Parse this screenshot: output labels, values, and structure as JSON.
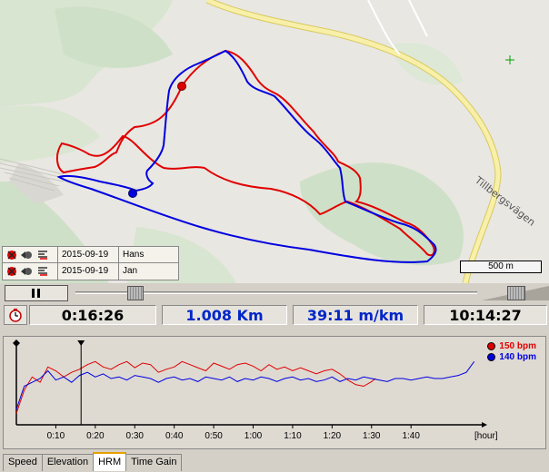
{
  "map": {
    "road_label": "Tillbergsvägen",
    "scale_label": "500 m",
    "colors": {
      "land": "#e9e7e2",
      "forest": "#cfe0c8",
      "road": "#f8f0a8",
      "road_edge": "#d8c860",
      "track_red": "#e00000",
      "track_blue": "#0000e0"
    }
  },
  "tracks": [
    {
      "date": "2015-09-19",
      "name": "Hans",
      "color": "#e00000"
    },
    {
      "date": "2015-09-19",
      "name": "Jan",
      "color": "#0000e0"
    }
  ],
  "playback": {
    "position": 0.15
  },
  "info": {
    "elapsed": "0:16:26",
    "distance": "1.008 Km",
    "pace": "39:11 m/km",
    "clock_time": "10:14:27"
  },
  "chart_data": {
    "type": "line",
    "x_unit": "[hour]",
    "x_ticks": [
      "0:10",
      "0:20",
      "0:30",
      "0:40",
      "0:50",
      "1:00",
      "1:10",
      "1:20",
      "1:30",
      "1:40"
    ],
    "x_tick_minutes": [
      10,
      20,
      30,
      40,
      50,
      60,
      70,
      80,
      90,
      100
    ],
    "x_max_minutes": 117,
    "cursor_minutes": 16.4,
    "series": [
      {
        "name": "150 bpm",
        "color": "#e00000",
        "x": [
          0,
          2,
          4,
          6,
          8,
          10,
          12,
          14,
          16,
          18,
          20,
          22,
          24,
          26,
          28,
          30,
          32,
          34,
          36,
          38,
          40,
          42,
          44,
          46,
          48,
          50,
          52,
          54,
          56,
          58,
          60,
          62,
          64,
          66,
          68,
          70,
          72,
          74,
          76,
          78,
          80,
          82,
          84,
          86,
          88,
          90,
          91
        ],
        "values": [
          0.15,
          0.45,
          0.62,
          0.55,
          0.75,
          0.7,
          0.62,
          0.68,
          0.72,
          0.78,
          0.82,
          0.75,
          0.72,
          0.78,
          0.82,
          0.74,
          0.8,
          0.78,
          0.68,
          0.72,
          0.75,
          0.82,
          0.78,
          0.74,
          0.7,
          0.8,
          0.76,
          0.72,
          0.78,
          0.8,
          0.76,
          0.7,
          0.78,
          0.72,
          0.75,
          0.7,
          0.74,
          0.7,
          0.66,
          0.7,
          0.72,
          0.66,
          0.58,
          0.52,
          0.5,
          0.56,
          0.6
        ]
      },
      {
        "name": "140 bpm",
        "color": "#0000e0",
        "x": [
          0,
          2,
          4,
          6,
          8,
          10,
          12,
          14,
          16,
          18,
          20,
          22,
          24,
          26,
          28,
          30,
          32,
          34,
          36,
          38,
          40,
          42,
          44,
          46,
          48,
          50,
          52,
          54,
          56,
          58,
          60,
          62,
          64,
          66,
          68,
          70,
          72,
          74,
          76,
          78,
          80,
          82,
          84,
          86,
          88,
          90,
          92,
          94,
          96,
          98,
          100,
          102,
          104,
          106,
          108,
          110,
          112,
          114,
          116
        ],
        "values": [
          0.2,
          0.5,
          0.55,
          0.6,
          0.7,
          0.58,
          0.62,
          0.55,
          0.64,
          0.68,
          0.62,
          0.66,
          0.6,
          0.62,
          0.58,
          0.64,
          0.62,
          0.6,
          0.55,
          0.6,
          0.62,
          0.58,
          0.6,
          0.56,
          0.62,
          0.6,
          0.58,
          0.62,
          0.56,
          0.6,
          0.58,
          0.62,
          0.6,
          0.56,
          0.6,
          0.62,
          0.58,
          0.6,
          0.56,
          0.58,
          0.62,
          0.56,
          0.6,
          0.58,
          0.62,
          0.6,
          0.58,
          0.56,
          0.6,
          0.6,
          0.58,
          0.6,
          0.62,
          0.6,
          0.6,
          0.62,
          0.64,
          0.68,
          0.82
        ]
      }
    ]
  },
  "tabs": [
    "Speed",
    "Elevation",
    "HRM",
    "Time Gain"
  ],
  "active_tab": "HRM"
}
